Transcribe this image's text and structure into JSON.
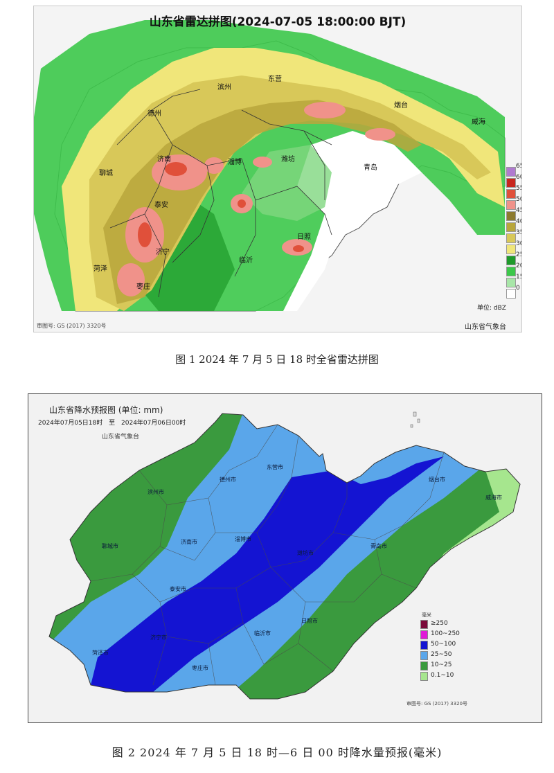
{
  "radar_map": {
    "title": "山东省雷达拼图(2024-07-05 18:00:00 BJT)",
    "approval": "审图号: GS (2017) 3320号",
    "agency": "山东省气象台",
    "unit_label": "单位: dBZ",
    "legend": [
      {
        "label": "65",
        "color": "#b07acf"
      },
      {
        "label": "60",
        "color": "#c8261e"
      },
      {
        "label": "55",
        "color": "#e0503a"
      },
      {
        "label": "50",
        "color": "#f0928a"
      },
      {
        "label": "45",
        "color": "#8c7a2e"
      },
      {
        "label": "40",
        "color": "#b8a63c"
      },
      {
        "label": "35",
        "color": "#d8c859"
      },
      {
        "label": "30",
        "color": "#f0e67a"
      },
      {
        "label": "25",
        "color": "#1e9a2a"
      },
      {
        "label": "20",
        "color": "#3cc84a"
      },
      {
        "label": "15",
        "color": "#a8e6a8"
      },
      {
        "label": "0",
        "color": "#ffffff"
      }
    ],
    "cities": [
      "德州",
      "滨州",
      "东营",
      "烟台",
      "威海",
      "聊城",
      "济南",
      "淄博",
      "潍坊",
      "青岛",
      "泰安",
      "日照",
      "济宁",
      "临沂",
      "菏泽",
      "枣庄"
    ]
  },
  "caption1": "图 1 2024 年 7 月 5 日 18 时全省雷达拼图",
  "forecast_map": {
    "title": "山东省降水预报图 (单位: mm)",
    "period_from": "2024年07月05日18时",
    "period_to_word": "至",
    "period_to": "2024年07月06日00时",
    "agency": "山东省气象台",
    "approval": "审图号: GS (2017) 3320号",
    "legend_title": "毫米",
    "legend": [
      {
        "label": "≥250",
        "color": "#7a0a3a"
      },
      {
        "label": "100~250",
        "color": "#e01ad8"
      },
      {
        "label": "50~100",
        "color": "#1414d2"
      },
      {
        "label": "25~50",
        "color": "#5aa6ea"
      },
      {
        "label": "10~25",
        "color": "#3a9a3e"
      },
      {
        "label": "0.1~10",
        "color": "#a6e68e"
      }
    ],
    "cities": [
      "滨州市",
      "东营市",
      "烟台市",
      "威海市",
      "德州市",
      "聊城市",
      "济南市",
      "淄博市",
      "潍坊市",
      "青岛市",
      "泰安市",
      "日照市",
      "临沂市",
      "济宁市",
      "菏泽市",
      "枣庄市"
    ]
  },
  "caption2": "图 2 2024 年 7 月 5 日 18 时—6 日 00 时降水量预报(毫米)"
}
